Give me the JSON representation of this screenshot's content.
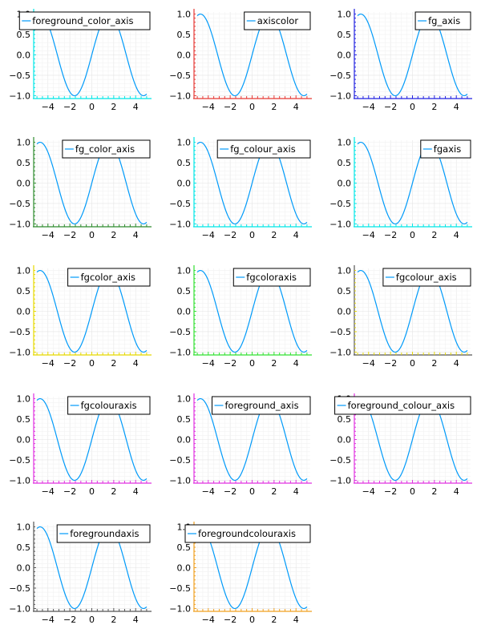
{
  "chart_data": {
    "type": "line",
    "layout": {
      "rows": 5,
      "cols": 3,
      "panels": 14
    },
    "x": [
      -5.0,
      -4.5,
      -4.0,
      -3.5,
      -3.0,
      -2.5,
      -2.0,
      -1.5,
      -1.0,
      -0.5,
      0.0,
      0.5,
      1.0,
      1.5,
      2.0,
      2.5,
      3.0,
      3.5,
      4.0,
      4.5,
      5.0
    ],
    "function": "sin(x)",
    "xlim": [
      -5.3,
      5.3
    ],
    "ylim": [
      -1.05,
      1.05
    ],
    "xticks": [
      -4,
      -2,
      0,
      2,
      4
    ],
    "xtick_labels": [
      "−4",
      "−2",
      "0",
      "2",
      "4"
    ],
    "yticks": [
      1.0,
      0.5,
      0.0,
      -0.5,
      -1.0
    ],
    "ytick_labels": [
      "1.0",
      "0.5",
      "0.0",
      "−0.5",
      "−1.0"
    ],
    "grid": true,
    "legend_position": "topright",
    "line_color": "#009af9",
    "subplots": [
      {
        "series_name": "foreground_color_axis",
        "axis_color": "#00e5e5",
        "tick_color": "#00e5e5"
      },
      {
        "series_name": "axiscolor",
        "axis_color": "#e53935",
        "tick_color": "#e53935"
      },
      {
        "series_name": "fg_axis",
        "axis_color": "#2020e0",
        "tick_color": "#2020e0"
      },
      {
        "series_name": "fg_color_axis",
        "axis_color": "#2e8b2e",
        "tick_color": "#2e8b2e"
      },
      {
        "series_name": "fg_colour_axis",
        "axis_color": "#00e5e5",
        "tick_color": "#00e5e5"
      },
      {
        "series_name": "fgaxis",
        "axis_color": "#00e5e5",
        "tick_color": "#00e5e5"
      },
      {
        "series_name": "fgcolor_axis",
        "axis_color": "#e5d800",
        "tick_color": "#e5d800"
      },
      {
        "series_name": "fgcoloraxis",
        "axis_color": "#32e032",
        "tick_color": "#32e032"
      },
      {
        "series_name": "fgcolour_axis",
        "axis_color": "#555555",
        "tick_color": "#e5d800"
      },
      {
        "series_name": "fgcolouraxis",
        "axis_color": "#e030e0",
        "tick_color": "#e030e0"
      },
      {
        "series_name": "foreground_axis",
        "axis_color": "#e030e0",
        "tick_color": "#e030e0"
      },
      {
        "series_name": "foreground_colour_axis",
        "axis_color": "#e030e0",
        "tick_color": "#e030e0"
      },
      {
        "series_name": "foregroundaxis",
        "axis_color": "#555555",
        "tick_color": "#555555"
      },
      {
        "series_name": "foregroundcolouraxis",
        "axis_color": "#f0a020",
        "tick_color": "#f0a020"
      }
    ]
  }
}
